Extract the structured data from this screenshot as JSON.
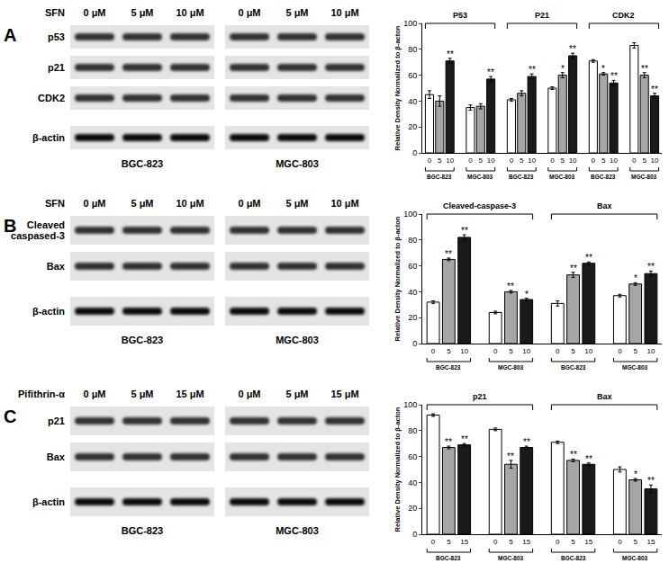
{
  "chart_data": [
    {
      "type": "bar",
      "ylabel": "Relative Density Normalized to β-acton",
      "categories": [
        "0",
        "5",
        "10",
        null,
        "0",
        "5",
        "10",
        null,
        "0",
        "5",
        "10",
        null,
        "0",
        "5",
        "10",
        null,
        "0",
        "5",
        "10",
        null,
        "0",
        "5",
        "10"
      ],
      "values": [
        45,
        40,
        71,
        null,
        35,
        36,
        57,
        null,
        41,
        46,
        59,
        null,
        50,
        60,
        75,
        null,
        71,
        61,
        54,
        null,
        83,
        60,
        44
      ],
      "errors": [
        3,
        4,
        2,
        null,
        2,
        2,
        2,
        null,
        1,
        2,
        2,
        null,
        1,
        2,
        2,
        null,
        1,
        1,
        2,
        null,
        2,
        2,
        2
      ],
      "significance": [
        null,
        null,
        "**",
        null,
        null,
        null,
        "**",
        null,
        null,
        null,
        "**",
        null,
        null,
        "*",
        "**",
        null,
        null,
        "*",
        "**",
        null,
        null,
        "**",
        "**"
      ],
      "colors": [
        "#ffffff",
        "#a6a6a6",
        "#1a1a1a",
        null,
        "#ffffff",
        "#a6a6a6",
        "#1a1a1a",
        null,
        "#ffffff",
        "#a6a6a6",
        "#1a1a1a",
        null,
        "#ffffff",
        "#a6a6a6",
        "#1a1a1a",
        null,
        "#ffffff",
        "#a6a6a6",
        "#1a1a1a",
        null,
        "#ffffff",
        "#a6a6a6",
        "#1a1a1a"
      ],
      "ylim": [
        0,
        100
      ],
      "yticks": [
        0,
        20,
        40,
        60,
        80,
        100
      ],
      "grid": false,
      "groups": [
        {
          "label": "P53",
          "from": 0,
          "to": 6
        },
        {
          "label": "P21",
          "from": 8,
          "to": 14
        },
        {
          "label": "CDK2",
          "from": 16,
          "to": 22
        }
      ],
      "subgroups": [
        {
          "label": "BGC-823",
          "from": 0,
          "to": 2
        },
        {
          "label": "MGC-803",
          "from": 4,
          "to": 6
        },
        {
          "label": "BGC-823",
          "from": 8,
          "to": 10
        },
        {
          "label": "MGC-803",
          "from": 12,
          "to": 14
        },
        {
          "label": "BGC-823",
          "from": 16,
          "to": 18
        },
        {
          "label": "MGC-803",
          "from": 20,
          "to": 22
        }
      ]
    },
    {
      "type": "bar",
      "ylabel": "Relative Density Normalized to β-acton",
      "categories": [
        "0",
        "5",
        "10",
        null,
        "0",
        "5",
        "10",
        null,
        "0",
        "5",
        "10",
        null,
        "0",
        "5",
        "10"
      ],
      "values": [
        32,
        65,
        82,
        null,
        24,
        40,
        34,
        null,
        31,
        53,
        62,
        null,
        37,
        46,
        54
      ],
      "errors": [
        1,
        1,
        2,
        null,
        1,
        1,
        1,
        null,
        2,
        2,
        1,
        null,
        1,
        1,
        2
      ],
      "significance": [
        null,
        "**",
        "**",
        null,
        null,
        "**",
        "*",
        null,
        null,
        "**",
        "**",
        null,
        null,
        "*",
        "**"
      ],
      "colors": [
        "#ffffff",
        "#a6a6a6",
        "#1a1a1a",
        null,
        "#ffffff",
        "#a6a6a6",
        "#1a1a1a",
        null,
        "#ffffff",
        "#a6a6a6",
        "#1a1a1a",
        null,
        "#ffffff",
        "#a6a6a6",
        "#1a1a1a"
      ],
      "ylim": [
        0,
        100
      ],
      "yticks": [
        0,
        20,
        40,
        60,
        80,
        100
      ],
      "grid": false,
      "groups": [
        {
          "label": "Cleaved-caspase-3",
          "from": 0,
          "to": 6
        },
        {
          "label": "Bax",
          "from": 8,
          "to": 14
        }
      ],
      "subgroups": [
        {
          "label": "BGC-823",
          "from": 0,
          "to": 2
        },
        {
          "label": "MGC-803",
          "from": 4,
          "to": 6
        },
        {
          "label": "BGC-823",
          "from": 8,
          "to": 10
        },
        {
          "label": "MGC-803",
          "from": 12,
          "to": 14
        }
      ]
    },
    {
      "type": "bar",
      "ylabel": "Relative Density Normalized to β-acton",
      "categories": [
        "0",
        "5",
        "15",
        null,
        "0",
        "5",
        "15",
        null,
        "0",
        "5",
        "15",
        null,
        "0",
        "5",
        "15"
      ],
      "values": [
        92,
        67,
        69,
        null,
        81,
        54,
        67,
        null,
        71,
        57,
        54,
        null,
        50,
        42,
        35
      ],
      "errors": [
        1,
        1,
        1,
        null,
        1,
        3,
        1,
        null,
        1,
        1,
        1,
        null,
        2,
        1,
        3
      ],
      "significance": [
        null,
        "**",
        "**",
        null,
        null,
        "**",
        "**",
        null,
        null,
        "**",
        "**",
        null,
        null,
        "*",
        "**"
      ],
      "colors": [
        "#ffffff",
        "#a6a6a6",
        "#1a1a1a",
        null,
        "#ffffff",
        "#a6a6a6",
        "#1a1a1a",
        null,
        "#ffffff",
        "#a6a6a6",
        "#1a1a1a",
        null,
        "#ffffff",
        "#a6a6a6",
        "#1a1a1a"
      ],
      "ylim": [
        0,
        100
      ],
      "yticks": [
        0,
        20,
        40,
        60,
        80,
        100
      ],
      "grid": false,
      "groups": [
        {
          "label": "p21",
          "from": 0,
          "to": 6
        },
        {
          "label": "Bax",
          "from": 8,
          "to": 14
        }
      ],
      "subgroups": [
        {
          "label": "BGC-823",
          "from": 0,
          "to": 2
        },
        {
          "label": "MGC-803",
          "from": 4,
          "to": 6
        },
        {
          "label": "BGC-823",
          "from": 8,
          "to": 10
        },
        {
          "label": "MGC-803",
          "from": 12,
          "to": 14
        }
      ]
    }
  ],
  "blots": [
    {
      "panel": "A",
      "treatment": "SFN",
      "doses": [
        "0 μM",
        "5 μM",
        "10 μM"
      ],
      "cell_lines": [
        "BGC-823",
        "MGC-803"
      ],
      "rows": [
        "p53",
        "p21",
        "CDK2",
        "β-actin"
      ]
    },
    {
      "panel": "B",
      "treatment": "SFN",
      "doses": [
        "0 μM",
        "5 μM",
        "10 μM"
      ],
      "cell_lines": [
        "BGC-823",
        "MGC-803"
      ],
      "rows": [
        "Cleaved\ncaspased-3",
        "Bax",
        "β-actin"
      ]
    },
    {
      "panel": "C",
      "treatment": "Pifithrin-α",
      "doses": [
        "0 μM",
        "5 μM",
        "15 μM"
      ],
      "cell_lines": [
        "BGC-823",
        "MGC-803"
      ],
      "rows": [
        "p21",
        "Bax",
        "β-actin"
      ]
    }
  ]
}
